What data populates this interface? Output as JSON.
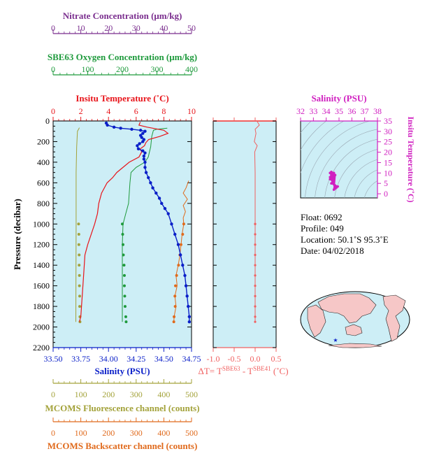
{
  "colors": {
    "temperature": "#e8141a",
    "salinity": "#0a1fc8",
    "oxygen": "#1e9a3c",
    "nitrate": "#7a2e8e",
    "fluorescence": "#a3a23a",
    "backscatter": "#e06a1c",
    "ts_diagram": "#d020c0",
    "delta_t": "#f06060",
    "plot_background": "#cdeef6"
  },
  "info": {
    "float_label": "Float:",
    "float_value": "0692",
    "profile_label": "Profile:",
    "profile_value": "049",
    "location_label": "Location:",
    "location_value": "50.1˚S  95.3˚E",
    "date_label": "Date:",
    "date_value": "04/02/2018"
  },
  "chart_data": [
    {
      "type": "line",
      "name": "main_profile",
      "ylabel": "Pressure (decibar)",
      "yaxis": {
        "min": 0,
        "max": 2200,
        "inverted": true,
        "ticks": [
          "0",
          "200",
          "400",
          "600",
          "800",
          "1000",
          "1200",
          "1400",
          "1600",
          "1800",
          "2000",
          "2200"
        ]
      },
      "axes": {
        "nitrate": {
          "label": "Nitrate Concentration (μm/kg)",
          "min": 0,
          "max": 50,
          "ticks": [
            "0",
            "10",
            "20",
            "30",
            "40",
            "50"
          ]
        },
        "oxygen": {
          "label": "SBE63 Oxygen Concentration (μm/kg)",
          "min": 0,
          "max": 400,
          "ticks": [
            "0",
            "100",
            "200",
            "300",
            "400"
          ]
        },
        "temperature": {
          "label": "Insitu Temperature (˚C)",
          "min": 0,
          "max": 10,
          "ticks": [
            "0",
            "2",
            "4",
            "6",
            "8",
            "10"
          ]
        },
        "salinity": {
          "label": "Salinity (PSU)",
          "min": 33.5,
          "max": 34.75,
          "ticks": [
            "33.50",
            "33.75",
            "34.00",
            "34.25",
            "34.50",
            "34.75"
          ]
        },
        "fluorescence": {
          "label": "MCOMS Fluorescence channel (counts)",
          "min": 0,
          "max": 500,
          "ticks": [
            "0",
            "100",
            "200",
            "300",
            "400",
            "500"
          ]
        },
        "backscatter": {
          "label": "MCOMS Backscatter channel (counts)",
          "min": 0,
          "max": 500,
          "ticks": [
            "0",
            "100",
            "200",
            "300",
            "400",
            "500"
          ]
        }
      },
      "series": {
        "temperature": [
          [
            6.3,
            10
          ],
          [
            6.2,
            40
          ],
          [
            6.8,
            60
          ],
          [
            8.0,
            90
          ],
          [
            8.3,
            120
          ],
          [
            7.7,
            150
          ],
          [
            6.9,
            180
          ],
          [
            6.7,
            210
          ],
          [
            6.6,
            240
          ],
          [
            6.3,
            270
          ],
          [
            6.4,
            300
          ],
          [
            6.2,
            350
          ],
          [
            5.5,
            400
          ],
          [
            4.6,
            500
          ],
          [
            4.3,
            550
          ],
          [
            3.9,
            600
          ],
          [
            3.5,
            700
          ],
          [
            3.3,
            800
          ],
          [
            3.2,
            900
          ],
          [
            3.0,
            1000
          ],
          [
            2.5,
            1200
          ],
          [
            2.3,
            1300
          ],
          [
            2.2,
            1500
          ],
          [
            2.1,
            1700
          ],
          [
            2.0,
            1900
          ],
          [
            1.9,
            1950
          ]
        ],
        "salinity": [
          [
            33.98,
            20
          ],
          [
            33.99,
            40
          ],
          [
            34.05,
            60
          ],
          [
            34.11,
            70
          ],
          [
            34.21,
            80
          ],
          [
            34.29,
            90
          ],
          [
            34.33,
            100
          ],
          [
            34.31,
            120
          ],
          [
            34.29,
            140
          ],
          [
            34.3,
            160
          ],
          [
            34.32,
            180
          ],
          [
            34.31,
            200
          ],
          [
            34.28,
            220
          ],
          [
            34.26,
            240
          ],
          [
            34.27,
            270
          ],
          [
            34.31,
            290
          ],
          [
            34.33,
            310
          ],
          [
            34.32,
            340
          ],
          [
            34.32,
            370
          ],
          [
            34.33,
            400
          ],
          [
            34.33,
            450
          ],
          [
            34.34,
            500
          ],
          [
            34.36,
            550
          ],
          [
            34.38,
            600
          ],
          [
            34.4,
            650
          ],
          [
            34.43,
            700
          ],
          [
            34.46,
            750
          ],
          [
            34.48,
            800
          ],
          [
            34.51,
            850
          ],
          [
            34.54,
            900
          ],
          [
            34.57,
            1000
          ],
          [
            34.6,
            1100
          ],
          [
            34.63,
            1200
          ],
          [
            34.65,
            1300
          ],
          [
            34.67,
            1400
          ],
          [
            34.69,
            1500
          ],
          [
            34.7,
            1600
          ],
          [
            34.71,
            1700
          ],
          [
            34.72,
            1800
          ],
          [
            34.73,
            1900
          ],
          [
            34.73,
            1950
          ]
        ],
        "oxygen": [
          [
            330,
            70
          ],
          [
            300,
            80
          ],
          [
            290,
            90
          ],
          [
            285,
            150
          ],
          [
            282,
            250
          ],
          [
            275,
            350
          ],
          [
            265,
            400
          ],
          [
            240,
            450
          ],
          [
            225,
            500
          ],
          [
            222,
            600
          ],
          [
            220,
            700
          ],
          [
            218,
            800
          ],
          [
            210,
            900
          ],
          [
            202,
            1000
          ],
          [
            200,
            1200
          ],
          [
            200,
            1950
          ]
        ],
        "fluorescence_line": [
          [
            95,
            65
          ],
          [
            88,
            100
          ],
          [
            85,
            250
          ],
          [
            83,
            500
          ],
          [
            83,
            1000
          ],
          [
            82,
            1950
          ]
        ],
        "oxygen_points": [
          [
            200,
            1000
          ],
          [
            201,
            1100
          ],
          [
            202,
            1200
          ],
          [
            203,
            1300
          ],
          [
            205,
            1400
          ],
          [
            206,
            1500
          ],
          [
            206,
            1600
          ],
          [
            207,
            1700
          ],
          [
            208,
            1800
          ],
          [
            210,
            1900
          ],
          [
            211,
            1950
          ]
        ],
        "fluorescence_points": [
          [
            92,
            1000
          ],
          [
            93,
            1100
          ],
          [
            93,
            1200
          ],
          [
            94,
            1300
          ],
          [
            94,
            1400
          ],
          [
            95,
            1500
          ],
          [
            95,
            1600
          ],
          [
            96,
            1700
          ],
          [
            96,
            1800
          ],
          [
            97,
            1900
          ],
          [
            97,
            1950
          ]
        ],
        "backscatter_line": [
          [
            490,
            580
          ],
          [
            480,
            650
          ],
          [
            470,
            700
          ],
          [
            485,
            760
          ],
          [
            470,
            820
          ],
          [
            478,
            880
          ],
          [
            470,
            940
          ],
          [
            472,
            1000
          ],
          [
            466,
            1100
          ],
          [
            462,
            1200
          ],
          [
            458,
            1300
          ],
          [
            452,
            1400
          ],
          [
            444,
            1500
          ],
          [
            448,
            1600
          ],
          [
            440,
            1700
          ],
          [
            444,
            1800
          ],
          [
            437,
            1900
          ],
          [
            436,
            1950
          ]
        ],
        "backscatter_points": [
          [
            472,
            1000
          ],
          [
            468,
            1100
          ],
          [
            462,
            1200
          ],
          [
            458,
            1300
          ],
          [
            453,
            1400
          ],
          [
            446,
            1500
          ],
          [
            442,
            1600
          ],
          [
            440,
            1700
          ],
          [
            441,
            1800
          ],
          [
            437,
            1900
          ],
          [
            436,
            1950
          ]
        ]
      }
    },
    {
      "type": "line",
      "name": "delta_t",
      "xlabel": "ΔT= T",
      "xlabel_sup1": "SBE63",
      "xlabel_mid": " - T",
      "xlabel_sup2": "SBE41",
      "xlabel_tail": " (˚C)",
      "xaxis": {
        "min": -1.0,
        "max": 0.5,
        "ticks": [
          "-1.0",
          "-0.5",
          "0.0",
          "0.5"
        ]
      },
      "series": [
        [
          0.05,
          5
        ],
        [
          0.1,
          40
        ],
        [
          0.0,
          80
        ],
        [
          0.02,
          120
        ],
        [
          -0.02,
          200
        ],
        [
          0.05,
          240
        ],
        [
          -0.01,
          300
        ],
        [
          0.0,
          500
        ],
        [
          0.0,
          1000
        ],
        [
          0.0,
          1950
        ]
      ]
    },
    {
      "type": "scatter",
      "name": "ts_diagram",
      "xlabel": "Salinity (PSU)",
      "ylabel": "Insitu Temperature (˚C)",
      "xaxis": {
        "min": 32,
        "max": 38,
        "ticks": [
          "32",
          "33",
          "34",
          "35",
          "36",
          "37",
          "38"
        ]
      },
      "yaxis": {
        "min": -2,
        "max": 35,
        "ticks": [
          "0",
          "5",
          "10",
          "15",
          "20",
          "25",
          "30",
          "35"
        ]
      },
      "points": [
        [
          34.6,
          2.0
        ],
        [
          34.7,
          2.5
        ],
        [
          34.8,
          3.0
        ],
        [
          34.9,
          3.5
        ],
        [
          34.7,
          4.0
        ],
        [
          34.6,
          4.5
        ],
        [
          34.4,
          5.0
        ],
        [
          34.5,
          6.0
        ],
        [
          34.3,
          7.0
        ],
        [
          34.3,
          8.0
        ],
        [
          34.4,
          9.0
        ],
        [
          34.3,
          10.0
        ],
        [
          34.4,
          10.5
        ],
        [
          34.6,
          10.0
        ],
        [
          34.7,
          9.0
        ]
      ]
    }
  ],
  "map": {
    "marker_lat": -50.1,
    "marker_lon": 95.3
  }
}
